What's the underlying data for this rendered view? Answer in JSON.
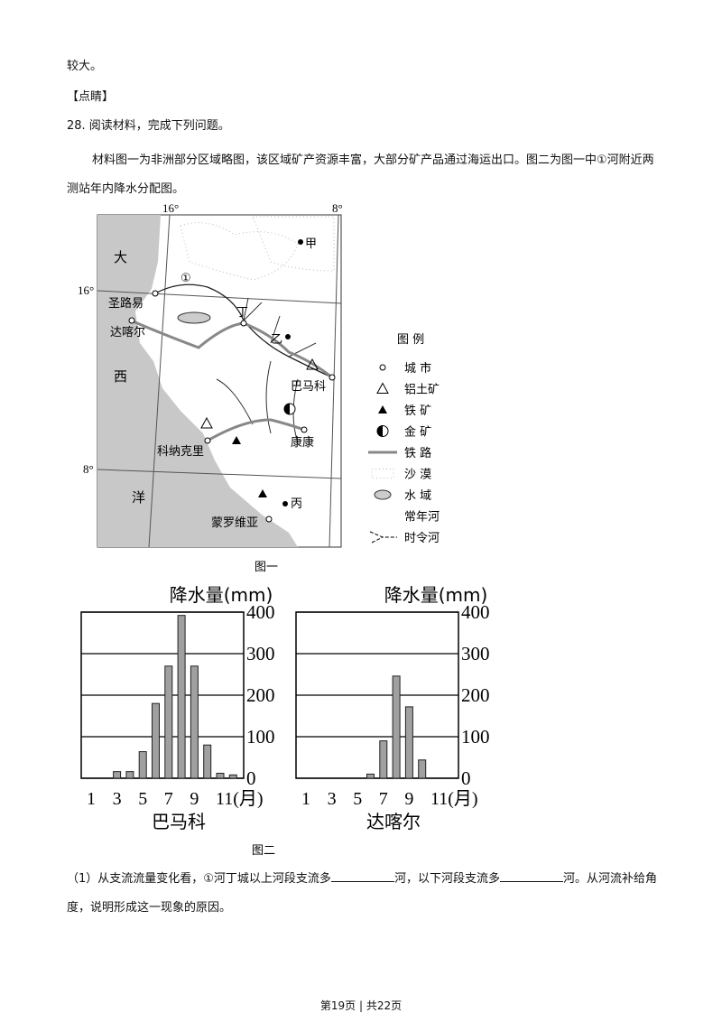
{
  "text": {
    "line1": "较大。",
    "tag": "【点睛】",
    "question": "28. 阅读材料，完成下列问题。",
    "material": "材料图一为非洲部分区域略图，该区域矿产资源丰富，大部分矿产品通过海运出口。图二为图一中①河附近两测站年内降水分配图。",
    "sub1": [
      "（1）从支流流量变化看，①河丁城以上河段支流多",
      "河，以下河段支流多",
      "河。从河流补给角度，说明形成这一现象的原因。"
    ]
  },
  "map": {
    "coords": [
      "16°",
      "8°",
      "16°",
      "8°"
    ],
    "labels": [
      "大",
      "西",
      "洋",
      "圣路易",
      "达喀尔",
      "①",
      "丁",
      "乙",
      "甲",
      "巴马科",
      "科纳克里",
      "康康",
      "蒙罗维亚",
      "丙"
    ],
    "caption": "图一"
  },
  "legend": {
    "title": "图  例",
    "items": [
      "城  市",
      "铝土矿",
      "铁  矿",
      "金  矿",
      "铁  路",
      "沙  漠",
      "水  域",
      "常年河",
      "时令河"
    ]
  },
  "figure2": {
    "caption": "图二"
  },
  "chart_data": [
    {
      "type": "bar",
      "title": "降水量(mm)",
      "subtitle": "巴马科",
      "categories": [
        "1",
        null,
        "3",
        null,
        "5",
        null,
        "7",
        null,
        "9",
        null,
        "11(月)",
        null
      ],
      "values": [
        0,
        0,
        16,
        16,
        64,
        180,
        270,
        392,
        270,
        80,
        12,
        8
      ],
      "color": "#a0a0a0",
      "ylim": [
        0,
        400
      ],
      "yticks": [
        0,
        100,
        200,
        300,
        400
      ],
      "grid": true
    },
    {
      "type": "bar",
      "title": "降水量(mm)",
      "subtitle": "达喀尔",
      "categories": [
        "1",
        null,
        "3",
        null,
        "5",
        null,
        "7",
        null,
        "9",
        null,
        "11(月)",
        null
      ],
      "values": [
        0,
        0,
        0,
        0,
        0,
        10,
        90,
        246,
        172,
        44,
        0,
        0
      ],
      "color": "#a0a0a0",
      "ylim": [
        0,
        400
      ],
      "yticks": [
        0,
        100,
        200,
        300,
        400
      ],
      "grid": true
    }
  ],
  "footer": "第19页 | 共22页"
}
